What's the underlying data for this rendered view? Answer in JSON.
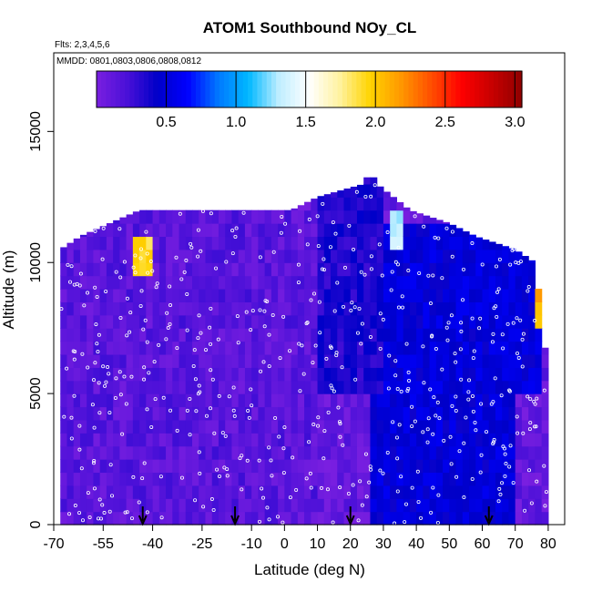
{
  "chart_data": {
    "type": "heatmap",
    "title": "ATOM1 Southbound NOy_CL",
    "subtitle": "Flts: 2,3,4,5,6",
    "annotation": "MMDD: 0801,0803,0806,0808,0812",
    "xlabel": "Latitude (deg N)",
    "ylabel": "Altitude (m)",
    "xlim": [
      -70,
      85
    ],
    "ylim": [
      0,
      18000
    ],
    "x_tick_labels": [
      "-70",
      "-55",
      "-40",
      "-25",
      "-10",
      "0",
      "10",
      "20",
      "30",
      "40",
      "50",
      "60",
      "70",
      "80"
    ],
    "x_tick_values": [
      -70,
      -55,
      -40,
      -25,
      -10,
      0,
      10,
      20,
      30,
      40,
      50,
      60,
      70,
      80
    ],
    "y_tick_labels": [
      "0",
      "5000",
      "10000",
      "15000"
    ],
    "y_tick_values": [
      0,
      5000,
      10000,
      15000
    ],
    "colorbar": {
      "range": [
        0,
        3.05
      ],
      "tick_labels": [
        "0.5",
        "1.0",
        "1.5",
        "2.0",
        "2.5",
        "3.0"
      ],
      "tick_values": [
        0.5,
        1.0,
        1.5,
        2.0,
        2.5,
        3.0
      ],
      "colors": [
        "#7a1fe0",
        "#4a10d8",
        "#0000c8",
        "#0000ff",
        "#0078ff",
        "#00b8ff",
        "#bfeeff",
        "#ffffff",
        "#fff2a0",
        "#ffd400",
        "#ff9900",
        "#ff5000",
        "#ff0000",
        "#c80000",
        "#900000"
      ]
    },
    "arrow_markers_lat": [
      -43,
      -15,
      20,
      62
    ],
    "ceiling_profile": [
      {
        "lat": -68,
        "alt": 10500
      },
      {
        "lat": -62,
        "alt": 11000
      },
      {
        "lat": -53,
        "alt": 11500
      },
      {
        "lat": -44,
        "alt": 12000
      },
      {
        "lat": -25,
        "alt": 12000
      },
      {
        "lat": -10,
        "alt": 12000
      },
      {
        "lat": 2,
        "alt": 12000
      },
      {
        "lat": 10,
        "alt": 12500
      },
      {
        "lat": 24,
        "alt": 13000
      },
      {
        "lat": 26,
        "alt": 13500
      },
      {
        "lat": 28,
        "alt": 13000
      },
      {
        "lat": 38,
        "alt": 12000
      },
      {
        "lat": 50,
        "alt": 11500
      },
      {
        "lat": 58,
        "alt": 11000
      },
      {
        "lat": 70,
        "alt": 10500
      },
      {
        "lat": 76,
        "alt": 10000
      },
      {
        "lat": 78,
        "alt": 8000
      },
      {
        "lat": 80,
        "alt": 5500
      }
    ],
    "regions": [
      {
        "name": "southern-hemisphere-background",
        "lat": [
          -70,
          10
        ],
        "alt": [
          0,
          12000
        ],
        "value": 0.15
      },
      {
        "name": "tropical-upper-troposphere",
        "lat": [
          10,
          30
        ],
        "alt": [
          5000,
          13500
        ],
        "value": 0.35
      },
      {
        "name": "northern-lower-troposphere",
        "lat": [
          25,
          70
        ],
        "alt": [
          0,
          5000
        ],
        "value": 0.5
      },
      {
        "name": "northern-upper-troposphere",
        "lat": [
          30,
          78
        ],
        "alt": [
          5000,
          11500
        ],
        "value": 0.5
      },
      {
        "name": "high-value-plume-south",
        "lat": [
          -47,
          -40
        ],
        "alt": [
          9500,
          11000
        ],
        "value": 1.9
      },
      {
        "name": "high-value-plume-north-upper",
        "lat": [
          32,
          36
        ],
        "alt": [
          10500,
          12000
        ],
        "value": 1.3
      },
      {
        "name": "high-value-plume-arctic",
        "lat": [
          76,
          79
        ],
        "alt": [
          7500,
          9500
        ],
        "value": 2.1
      }
    ]
  }
}
